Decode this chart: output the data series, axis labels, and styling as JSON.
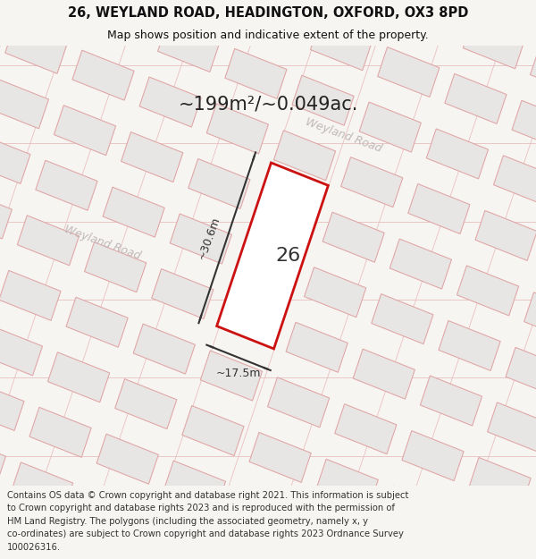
{
  "title_line1": "26, WEYLAND ROAD, HEADINGTON, OXFORD, OX3 8PD",
  "title_line2": "Map shows position and indicative extent of the property.",
  "area_text": "~199m²/~0.049ac.",
  "plot_number": "26",
  "width_label": "~17.5m",
  "height_label": "~30.6m",
  "footer_lines": [
    "Contains OS data © Crown copyright and database right 2021. This information is subject",
    "to Crown copyright and database rights 2023 and is reproduced with the permission of",
    "HM Land Registry. The polygons (including the associated geometry, namely x, y",
    "co-ordinates) are subject to Crown copyright and database rights 2023 Ordnance Survey",
    "100026316."
  ],
  "bg_color": "#f7f5f2",
  "map_bg_color": "#f7f5f2",
  "plot_fill": "#ffffff",
  "plot_edge": "#cc1111",
  "building_fill": "#e8e6e4",
  "building_edge": "#e0a8a8",
  "road_label_color": "#c0b8b8",
  "title_color": "#111111",
  "footer_color": "#333333",
  "dim_color": "#333333",
  "area_text_color": "#222222",
  "road_line_color": "#e8c0c0"
}
